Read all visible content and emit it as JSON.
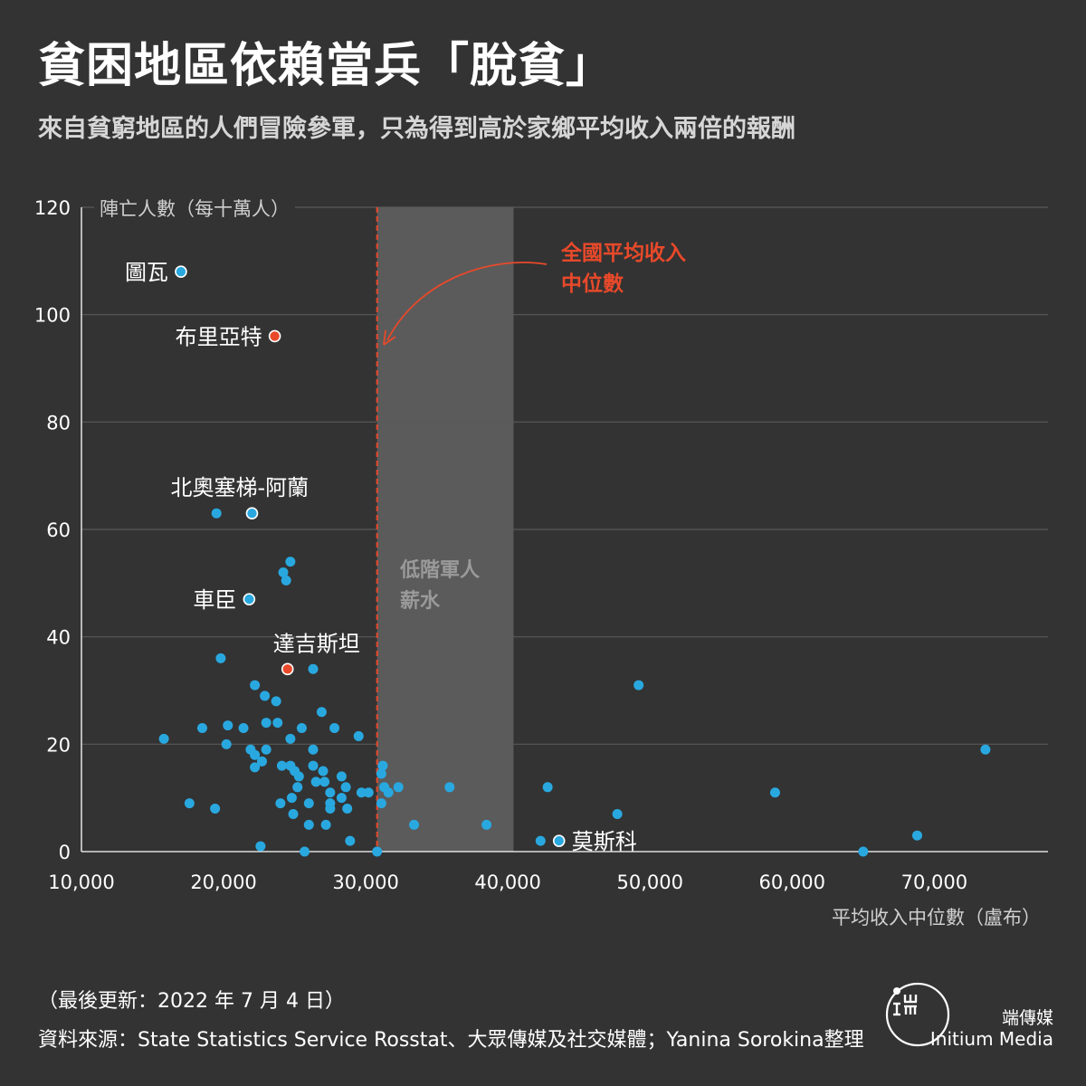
{
  "title": "貧困地區依賴當兵「脫貧」",
  "subtitle": "來自貧窮地區的人們冒險參軍，只為得到高於家鄉平均收入兩倍的報酬",
  "chart_data": {
    "type": "scatter",
    "ylabel": "陣亡人數（每十萬人）",
    "xlabel": "平均收入中位數（盧布）",
    "xlim": [
      10000,
      78000
    ],
    "ylim": [
      0,
      120
    ],
    "x_ticks": [
      10000,
      20000,
      30000,
      40000,
      50000,
      60000,
      70000
    ],
    "x_tick_labels": [
      "10,000",
      "20,000",
      "30,000",
      "40,000",
      "50,000",
      "60,000",
      "70,000"
    ],
    "y_ticks": [
      0,
      20,
      40,
      60,
      80,
      100,
      120
    ],
    "y_tick_labels": [
      "0",
      "20",
      "40",
      "60",
      "80",
      "100",
      "120"
    ],
    "grid": true,
    "reference_line": {
      "x": 30800,
      "label": "全國平均收入中位數",
      "label_lines": [
        "全國平均收入",
        "中位數"
      ]
    },
    "shaded_band": {
      "x_start": 30800,
      "x_end": 40400,
      "label": "低階軍人薪水",
      "label_lines": [
        "低階軍人",
        "薪水"
      ]
    },
    "colors": {
      "point": "#29a8e0",
      "highlight": "#e8492a",
      "background": "#333333",
      "grid": "#5a5a5a",
      "band": "#5b5b5b",
      "reference_line": "#e8492a",
      "annotation": "#e8492a",
      "band_label": "#9a9a9a"
    },
    "labeled_points": [
      {
        "name": "圖瓦",
        "x": 17000,
        "y": 108,
        "highlight": false,
        "outlined": true,
        "label_side": "left"
      },
      {
        "name": "布里亞特",
        "x": 23600,
        "y": 96,
        "highlight": true,
        "outlined": true,
        "label_side": "left"
      },
      {
        "name": "北奧塞梯-阿蘭",
        "x": 22000,
        "y": 63,
        "highlight": false,
        "outlined": true,
        "label_side": "above"
      },
      {
        "name": "車臣",
        "x": 21800,
        "y": 47,
        "highlight": false,
        "outlined": true,
        "label_side": "left"
      },
      {
        "name": "達吉斯坦",
        "x": 24500,
        "y": 34,
        "highlight": true,
        "outlined": true,
        "label_side": "above-right"
      },
      {
        "name": "莫斯科",
        "x": 43600,
        "y": 2,
        "highlight": false,
        "outlined": true,
        "label_side": "right"
      }
    ],
    "points": [
      [
        19500,
        63
      ],
      [
        24700,
        54
      ],
      [
        24200,
        52
      ],
      [
        24400,
        50.5
      ],
      [
        19800,
        36
      ],
      [
        26300,
        34
      ],
      [
        22200,
        31
      ],
      [
        22900,
        29
      ],
      [
        23700,
        28
      ],
      [
        26900,
        26
      ],
      [
        15800,
        21
      ],
      [
        18500,
        23
      ],
      [
        20300,
        23.5
      ],
      [
        21400,
        23
      ],
      [
        23000,
        24
      ],
      [
        23800,
        24
      ],
      [
        25500,
        23
      ],
      [
        27800,
        23
      ],
      [
        24700,
        21
      ],
      [
        29500,
        21.5
      ],
      [
        20200,
        20
      ],
      [
        21900,
        19
      ],
      [
        23000,
        19
      ],
      [
        26300,
        19
      ],
      [
        22200,
        18
      ],
      [
        22700,
        16.8
      ],
      [
        22200,
        15.7
      ],
      [
        24100,
        16
      ],
      [
        24700,
        16
      ],
      [
        25000,
        15
      ],
      [
        26300,
        16
      ],
      [
        27000,
        15
      ],
      [
        25300,
        14
      ],
      [
        26500,
        13
      ],
      [
        27100,
        13
      ],
      [
        28300,
        14
      ],
      [
        25200,
        12
      ],
      [
        27500,
        11
      ],
      [
        28600,
        12
      ],
      [
        24800,
        10
      ],
      [
        24000,
        9
      ],
      [
        26000,
        9
      ],
      [
        27500,
        9
      ],
      [
        28300,
        10
      ],
      [
        27500,
        8
      ],
      [
        28700,
        8
      ],
      [
        24900,
        7
      ],
      [
        26000,
        5
      ],
      [
        27200,
        5
      ],
      [
        17600,
        9
      ],
      [
        19400,
        8
      ],
      [
        22600,
        1
      ],
      [
        25700,
        0
      ],
      [
        28900,
        2
      ],
      [
        29700,
        11
      ],
      [
        30200,
        11
      ],
      [
        30800,
        0
      ],
      [
        31200,
        16
      ],
      [
        31100,
        14.5
      ],
      [
        31300,
        12
      ],
      [
        31600,
        11
      ],
      [
        32300,
        12
      ],
      [
        31100,
        9
      ],
      [
        33400,
        5
      ],
      [
        35900,
        12
      ],
      [
        38500,
        5
      ],
      [
        42300,
        2
      ],
      [
        42800,
        12
      ],
      [
        47700,
        7
      ],
      [
        49200,
        31
      ],
      [
        58800,
        11
      ],
      [
        65000,
        0
      ],
      [
        68800,
        3
      ],
      [
        73600,
        19
      ]
    ]
  },
  "footer": {
    "updated": "（最後更新：2022 年 7 月 4 日）",
    "source": "資料來源：State Statistics Service Rosstat、大眾傳媒及社交媒體；Yanina Sorokina整理"
  },
  "brand": {
    "name_zh": "端傳媒",
    "name_en": "Initium Media",
    "logo_icon": "initium-logo-icon"
  }
}
